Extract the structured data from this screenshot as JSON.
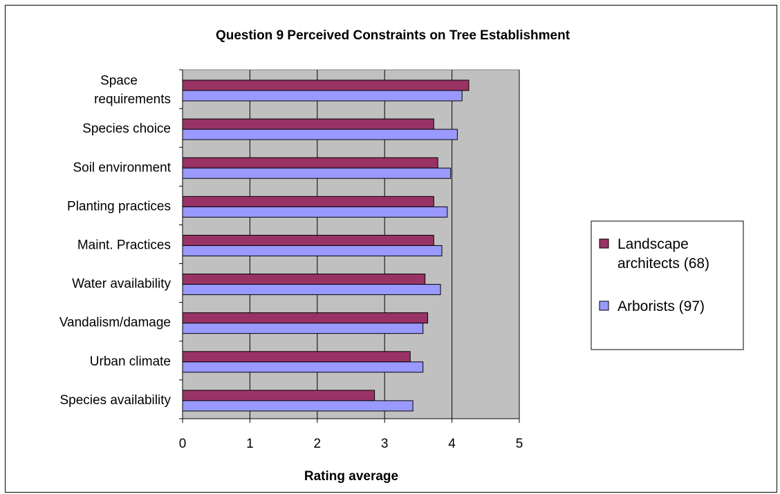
{
  "chart_data": {
    "type": "bar",
    "orientation": "horizontal",
    "title": "Question 9 Perceived Constraints on Tree Establishment",
    "xlabel": "Rating average",
    "ylabel": "",
    "xlim": [
      0,
      5
    ],
    "xticks": [
      "0",
      "1",
      "2",
      "3",
      "4",
      "5"
    ],
    "grid": "vertical major gridlines",
    "plot_background": "#c0c0c0",
    "legend_position": "right",
    "categories": [
      [
        "Space",
        "requirements"
      ],
      [
        "Species choice"
      ],
      [
        "Soil environment"
      ],
      [
        "Planting practices"
      ],
      [
        "Maint. Practices"
      ],
      [
        "Water availability"
      ],
      [
        "Vandalism/damage"
      ],
      [
        "Urban climate"
      ],
      [
        "Species availability"
      ]
    ],
    "series": [
      {
        "name": [
          "Landscape",
          "architects (68)"
        ],
        "color": "#993366",
        "values": [
          4.25,
          3.73,
          3.79,
          3.73,
          3.73,
          3.6,
          3.64,
          3.38,
          2.85
        ]
      },
      {
        "name": [
          "Arborists (97)"
        ],
        "color": "#9999ff",
        "values": [
          4.15,
          4.08,
          3.98,
          3.93,
          3.85,
          3.83,
          3.57,
          3.57,
          3.42
        ]
      }
    ]
  }
}
